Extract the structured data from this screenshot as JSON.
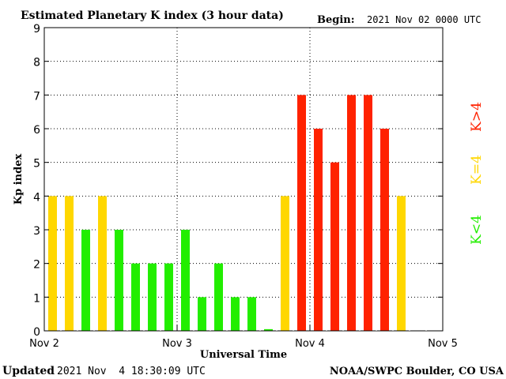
{
  "header": {
    "title": "Estimated Planetary K index (3 hour data)",
    "begin_label": "Begin:",
    "begin_value": "2021 Nov 02 0000 UTC"
  },
  "footer": {
    "updated_label": "Updated",
    "updated_value": "2021 Nov  4 18:30:09 UTC",
    "credit": "NOAA/SWPC Boulder, CO USA"
  },
  "legend": {
    "below": "K<4",
    "equal": "K=4",
    "above": "K>4"
  },
  "colors": {
    "below": "#22ee00",
    "equal": "#ffd700",
    "above": "#ff2200",
    "axis": "#000000",
    "grid": "#000000"
  },
  "chart_data": {
    "type": "bar",
    "xlabel": "Universal Time",
    "ylabel": "Kp index",
    "ylim": [
      0,
      9
    ],
    "yticks": [
      0,
      1,
      2,
      3,
      4,
      5,
      6,
      7,
      8,
      9
    ],
    "xticks": [
      "Nov 2",
      "Nov 3",
      "Nov 4",
      "Nov 5"
    ],
    "bins_per_day": 8,
    "values": [
      4,
      4,
      3,
      4,
      3,
      2,
      2,
      2,
      3,
      1,
      2,
      1,
      1,
      0.05,
      4,
      7,
      6,
      5,
      7,
      7,
      6,
      4
    ],
    "grid": true
  }
}
